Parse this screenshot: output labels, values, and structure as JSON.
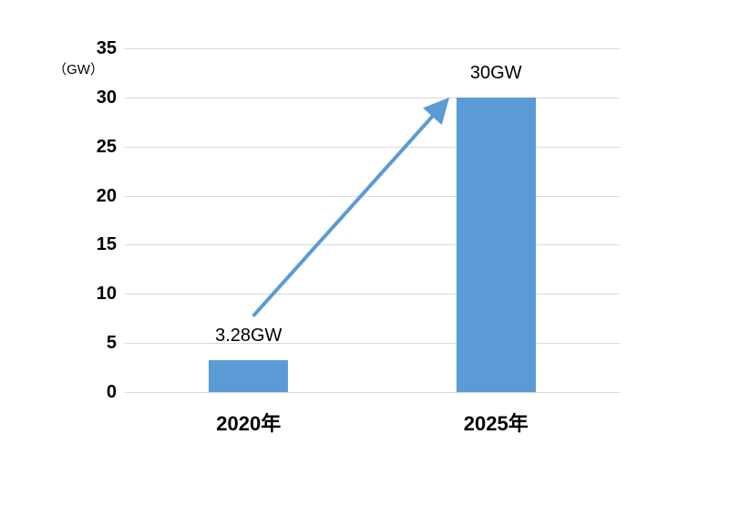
{
  "chart_data": {
    "type": "bar",
    "title": "",
    "unit_label": "（GW）",
    "categories": [
      "2020年",
      "2025年"
    ],
    "values": [
      3.28,
      30
    ],
    "data_labels": [
      "3.28GW",
      "30GW"
    ],
    "ylabel": "",
    "xlabel": "",
    "ylim": [
      0,
      35
    ],
    "ytick_interval": 5,
    "yticks": [
      0,
      5,
      10,
      15,
      20,
      25,
      30,
      35
    ],
    "grid": true,
    "legend": "none",
    "annotations": [
      {
        "type": "arrow",
        "description": "growth arrow from 2020 bar label to top of 2025 bar",
        "from_category": "2020年",
        "to_category": "2025年"
      }
    ],
    "colors": {
      "bar": "#5b9bd5",
      "arrow": "#5b9bd5",
      "gridline": "#d9d9d9",
      "text": "#000000",
      "background": "#ffffff"
    }
  }
}
